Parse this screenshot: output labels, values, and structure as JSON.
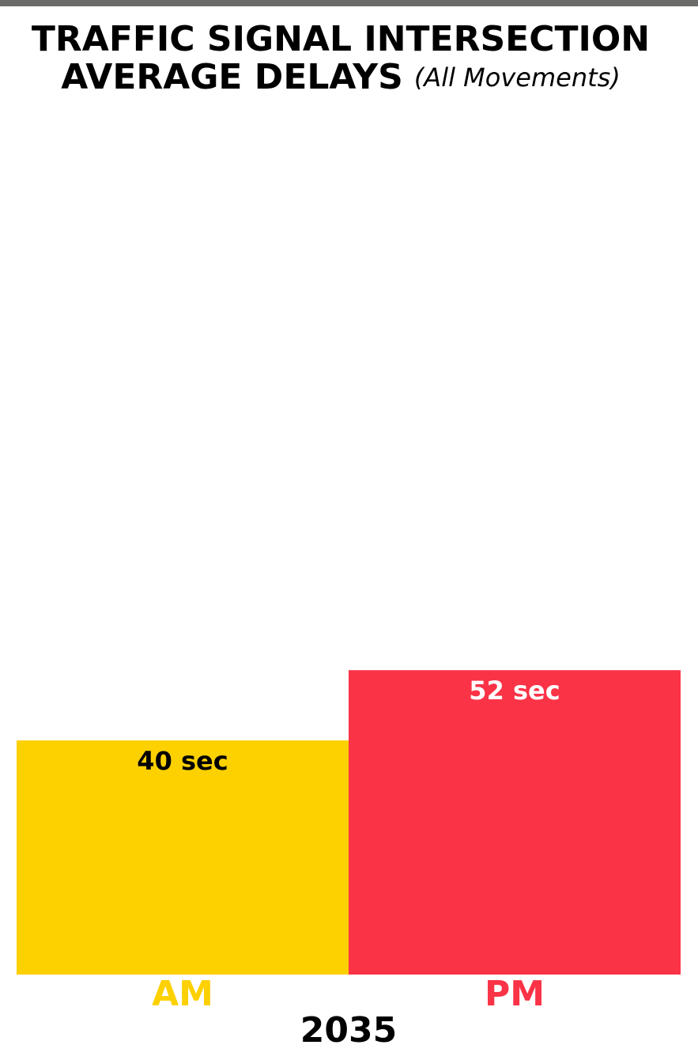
{
  "chart_data": {
    "type": "bar",
    "title": "TRAFFIC SIGNAL INTERSECTION",
    "title_line2": "AVERAGE DELAYS",
    "subtitle": "(All Movements)",
    "x_label": "2035",
    "categories": [
      "AM",
      "PM"
    ],
    "values": [
      40,
      52
    ],
    "value_labels": [
      "40 sec",
      "52 sec"
    ],
    "colors": [
      "#fdd000",
      "#fb3347"
    ]
  }
}
